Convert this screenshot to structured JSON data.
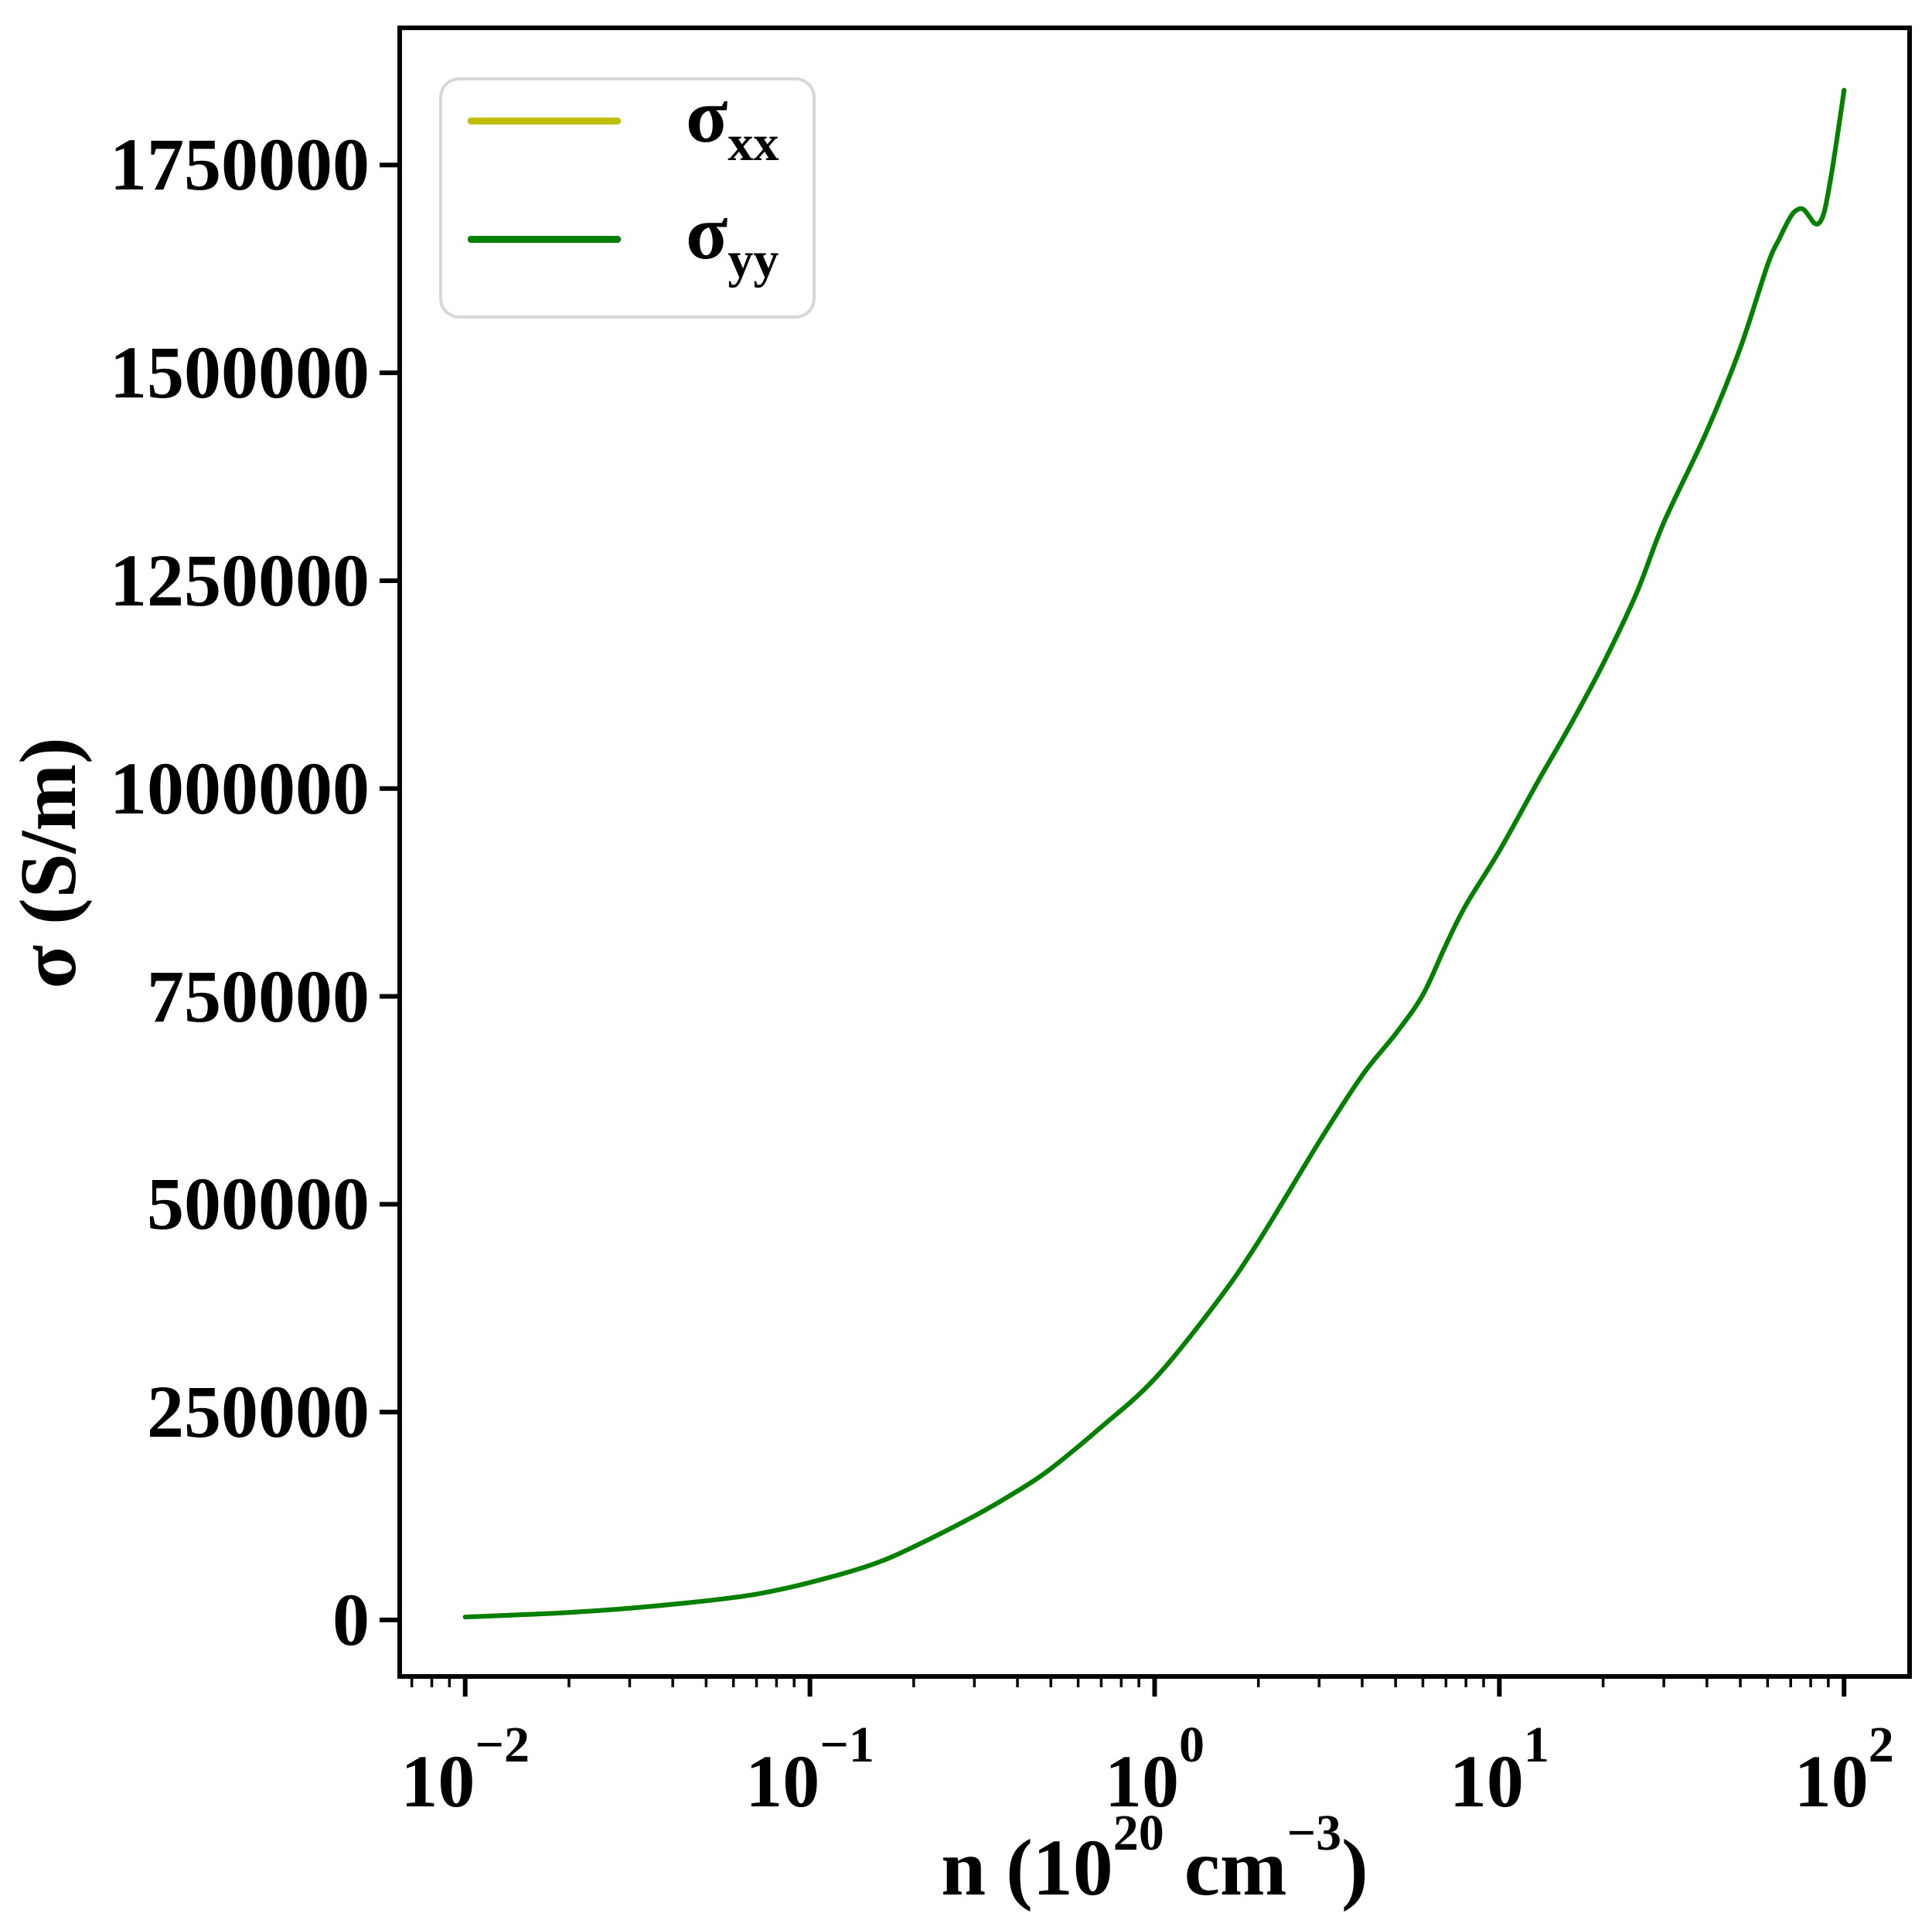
{
  "figure": {
    "background": "#ffffff",
    "axis_color": "#000000",
    "legend_border_color": "#d8d8d8"
  },
  "ylabel": "σ (S/m)",
  "xlabel_parts": [
    {
      "text": "n (10"
    },
    {
      "sup": "20"
    },
    {
      "text": " cm"
    },
    {
      "sup": "−3"
    },
    {
      "text": ")"
    }
  ],
  "y_ticks": [
    {
      "value": 0,
      "label": "0"
    },
    {
      "value": 250000,
      "label": "250000"
    },
    {
      "value": 500000,
      "label": "500000"
    },
    {
      "value": 750000,
      "label": "750000"
    },
    {
      "value": 1000000,
      "label": "1000000"
    },
    {
      "value": 1250000,
      "label": "1250000"
    },
    {
      "value": 1500000,
      "label": "1500000"
    },
    {
      "value": 1750000,
      "label": "1750000"
    }
  ],
  "x_ticks": [
    {
      "log10": -2,
      "base": "10",
      "exp": "−2"
    },
    {
      "log10": -1,
      "base": "10",
      "exp": "−1"
    },
    {
      "log10": 0,
      "base": "10",
      "exp": "0"
    },
    {
      "log10": 1,
      "base": "10",
      "exp": "1"
    },
    {
      "log10": 2,
      "base": "10",
      "exp": "2"
    }
  ],
  "legend": {
    "items": [
      {
        "symbol": "σ",
        "subscript": "xx",
        "color": "#bfbf00"
      },
      {
        "symbol": "σ",
        "subscript": "yy",
        "color": "#008000"
      }
    ]
  },
  "chart_data": {
    "type": "line",
    "title": "",
    "xlabel": "n (10^20 cm^-3)",
    "ylabel": "σ (S/m)",
    "x_scale": "log",
    "xlim": [
      0.00646,
      155.0
    ],
    "ylim": [
      -68000,
      1915000
    ],
    "grid": false,
    "legend_position": "upper left",
    "note": "σ_xx and σ_yy curves overlap exactly; green σ_yy is drawn on top of yellow σ_xx",
    "x": [
      0.01,
      0.015,
      0.02,
      0.03,
      0.05,
      0.07,
      0.1,
      0.15,
      0.2,
      0.3,
      0.4,
      0.5,
      0.7,
      1,
      1.5,
      2,
      3,
      4,
      5,
      6,
      7,
      8,
      10,
      13,
      16,
      20,
      25,
      30,
      40,
      50,
      60,
      65,
      70,
      73,
      76,
      79,
      82,
      85,
      88,
      92,
      96,
      100
    ],
    "series": [
      {
        "name": "σ_xx",
        "color": "#bfbf00",
        "values": [
          3500,
          6500,
          9000,
          14000,
          23000,
          31000,
          45000,
          66000,
          88000,
          125000,
          155000,
          182000,
          232000,
          290000,
          380000,
          455000,
          575000,
          655000,
          705000,
          752000,
          812000,
          860000,
          925000,
          1010000,
          1075000,
          1150000,
          1235000,
          1320000,
          1430000,
          1530000,
          1630000,
          1662000,
          1688000,
          1696000,
          1697000,
          1689000,
          1680000,
          1681000,
          1697000,
          1740000,
          1790000,
          1840000
        ]
      },
      {
        "name": "σ_yy",
        "color": "#008000",
        "values": [
          3500,
          6500,
          9000,
          14000,
          23000,
          31000,
          45000,
          66000,
          88000,
          125000,
          155000,
          182000,
          232000,
          290000,
          380000,
          455000,
          575000,
          655000,
          705000,
          752000,
          812000,
          860000,
          925000,
          1010000,
          1075000,
          1150000,
          1235000,
          1320000,
          1430000,
          1530000,
          1630000,
          1662000,
          1688000,
          1696000,
          1697000,
          1689000,
          1680000,
          1681000,
          1697000,
          1740000,
          1790000,
          1840000
        ]
      }
    ],
    "y_tick_values": [
      0,
      250000,
      500000,
      750000,
      1000000,
      1250000,
      1500000,
      1750000
    ],
    "x_tick_values": [
      0.01,
      0.1,
      1,
      10,
      100
    ]
  }
}
